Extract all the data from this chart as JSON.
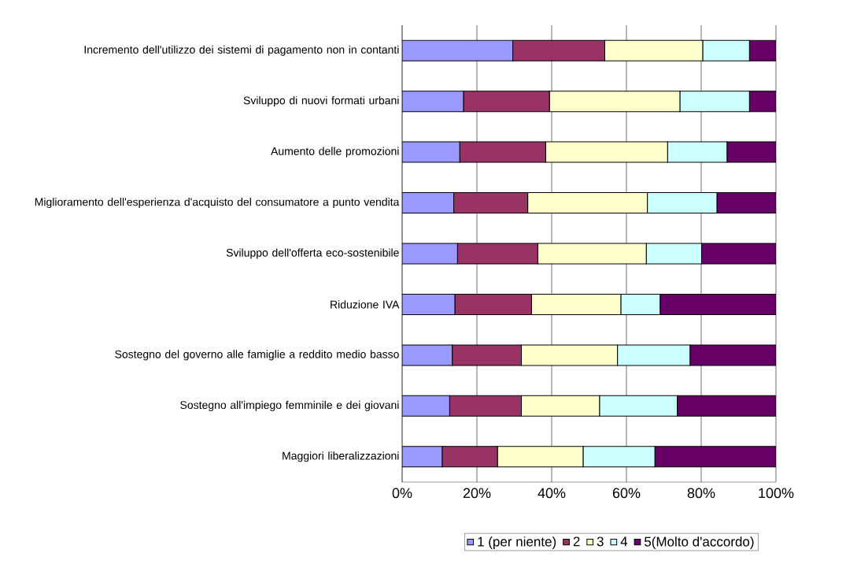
{
  "chart_data": {
    "type": "bar",
    "orientation": "horizontal",
    "stacked": true,
    "grid": "x",
    "legend": "bottom",
    "categories": [
      "Incremento dell'utilizzo dei sistemi di pagamento non in contanti",
      "Sviluppo di nuovi formati urbani",
      "Aumento delle promozioni",
      "Miglioramento dell'esperienza d'acquisto del consumatore a punto vendita",
      "Sviluppo dell'offerta eco-sostenibile",
      "Riduzione IVA",
      "Sostegno del governo alle famiglie a reddito medio basso",
      "Sostegno all'impiego femminile e dei giovani",
      "Maggiori liberalizzazioni"
    ],
    "series": [
      {
        "name": "1 (per niente)",
        "color": "#9999ff",
        "values": [
          29.6,
          16.4,
          15.4,
          13.8,
          14.8,
          14.1,
          13.4,
          12.7,
          10.7
        ]
      },
      {
        "name": "2",
        "color": "#993366",
        "values": [
          24.6,
          23.0,
          23.0,
          19.8,
          21.5,
          20.5,
          18.5,
          19.2,
          14.8
        ]
      },
      {
        "name": "3",
        "color": "#ffffcc",
        "values": [
          26.2,
          34.9,
          32.6,
          32.0,
          29.0,
          23.9,
          25.7,
          20.9,
          22.9
        ]
      },
      {
        "name": "4",
        "color": "#ccffff",
        "values": [
          12.5,
          18.6,
          15.9,
          18.6,
          14.8,
          10.5,
          19.4,
          20.8,
          19.2
        ]
      },
      {
        "name": "5(Molto d'accordo)",
        "color": "#660066",
        "values": [
          7.1,
          7.1,
          13.1,
          15.8,
          19.9,
          31.0,
          23.0,
          26.4,
          32.4
        ]
      }
    ],
    "xlim": [
      0,
      100
    ],
    "xticks": [
      {
        "value": 0,
        "label": "0%"
      },
      {
        "value": 20,
        "label": "20%"
      },
      {
        "value": 40,
        "label": "40%"
      },
      {
        "value": 60,
        "label": "60%"
      },
      {
        "value": 80,
        "label": "80%"
      },
      {
        "value": 100,
        "label": "100%"
      }
    ]
  }
}
